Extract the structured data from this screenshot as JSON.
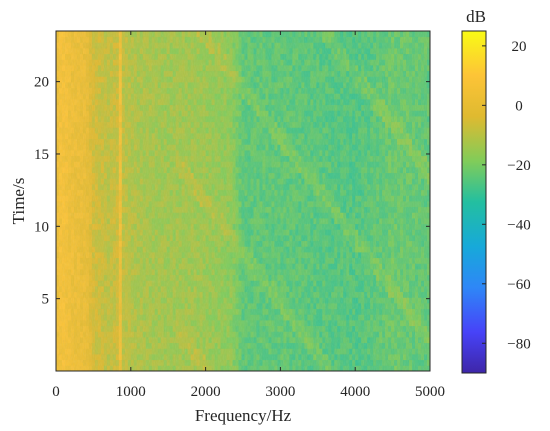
{
  "chart_data": {
    "type": "heatmap",
    "title": "",
    "xlabel": "Frequency/Hz",
    "ylabel": "Time/s",
    "xlim": [
      0,
      5000
    ],
    "ylim": [
      0,
      23.5
    ],
    "x_ticks": [
      0,
      1000,
      2000,
      3000,
      4000,
      5000
    ],
    "y_ticks": [
      5,
      10,
      15,
      20
    ],
    "colorbar": {
      "label": "dB",
      "range": [
        -90,
        25
      ],
      "ticks": [
        20,
        0,
        -20,
        -40,
        -60,
        -80
      ],
      "tick_labels": [
        "20",
        "0",
        "−20",
        "−40",
        "−60",
        "−80"
      ],
      "colormap": "parula"
    },
    "frequency_profile_hz": [
      0,
      80,
      200,
      400,
      500,
      700,
      840,
      860,
      900,
      1100,
      1500,
      1900,
      2200,
      2350,
      2500,
      3000,
      3500,
      4000,
      4200,
      4500,
      5000
    ],
    "frequency_profile_db": [
      4,
      8,
      4,
      2,
      -5,
      -9,
      -6,
      4,
      -9,
      -12,
      -14,
      -14,
      -16,
      -17,
      -24,
      -24,
      -25,
      -26,
      -25,
      -22,
      -24
    ],
    "grid": false
  }
}
